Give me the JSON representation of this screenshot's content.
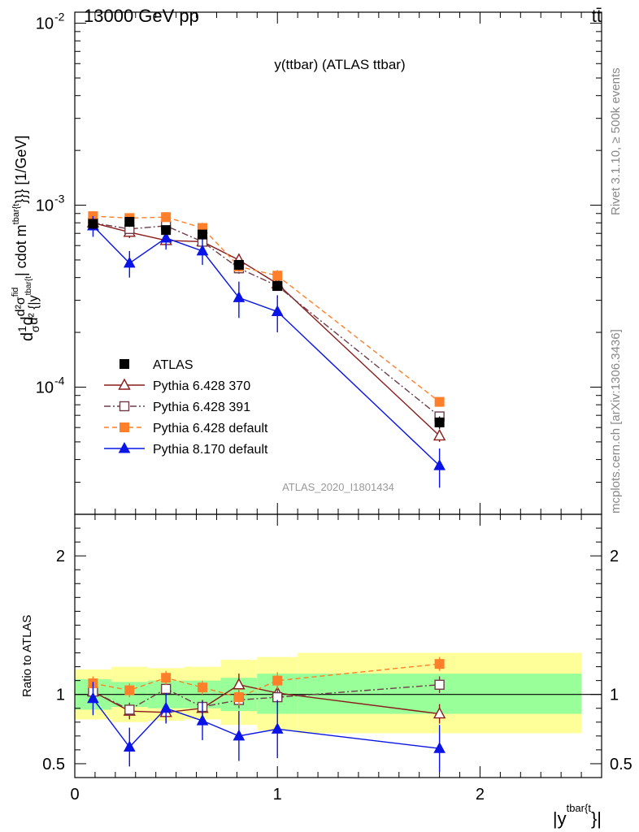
{
  "header": {
    "left": "13000 GeV pp",
    "right": "tt̄"
  },
  "title": "y(ttbar) (ATLAS ttbar)",
  "watermark": "ATLAS_2020_I1801434",
  "side_labels": {
    "rivet": "Rivet 3.1.10, ≥ 500k events",
    "mcplots": "mcplots.cern.ch [arXiv:1306.3436]"
  },
  "axis_labels": {
    "ylabel_main": "d1/σ d²σ^fid / d²{|y^tbar{t}| cdot m^tbar{t}}} [1/GeV]",
    "ylabel_main_parts": {
      "frac": "1",
      "sigma": "σ",
      "d": "d",
      "num": "d²σ",
      "fid": "fid",
      "den": "d² {|y",
      "dsup": "tbar{t",
      "cdot": "| cdot m",
      "msup": "tbar{t",
      "tail": "}}} [1/GeV]"
    },
    "ylabel_ratio": "Ratio to ATLAS",
    "xlabel_base": "|y",
    "xlabel_sup": "tbar{t",
    "xlabel_tail": "}|"
  },
  "chart_data": {
    "type": "scatter",
    "title": "y(ttbar) (ATLAS ttbar)",
    "x_axis": {
      "min": 0,
      "max": 2.6,
      "ticks": [
        0,
        1,
        2
      ],
      "tick_labels": [
        "0",
        "1",
        "2"
      ]
    },
    "main_y_axis": {
      "scale": "log",
      "min": 2e-05,
      "max": 0.0115,
      "major_ticks": [
        0.0001,
        0.001,
        0.01
      ],
      "tick_labels": [
        "10",
        "10",
        "10"
      ],
      "tick_exponents": [
        "-4",
        "-3",
        "-2"
      ]
    },
    "ratio_y_axis": {
      "min": 0.4,
      "max": 2.3,
      "ticks": [
        0.5,
        1,
        2
      ],
      "tick_labels": [
        "0.5",
        "1",
        "2"
      ]
    },
    "x": [
      0.09,
      0.27,
      0.45,
      0.63,
      0.81,
      1.0,
      1.8
    ],
    "bin_edges": [
      0,
      0.18,
      0.36,
      0.54,
      0.72,
      0.9,
      1.1,
      2.5
    ],
    "band_inner": [
      [
        0.89,
        1.11
      ],
      [
        0.91,
        1.09
      ],
      [
        0.9,
        1.1
      ],
      [
        0.9,
        1.1
      ],
      [
        0.88,
        1.12
      ],
      [
        0.86,
        1.15
      ],
      [
        0.86,
        1.15
      ]
    ],
    "band_outer": [
      [
        0.82,
        1.18
      ],
      [
        0.8,
        1.2
      ],
      [
        0.81,
        1.19
      ],
      [
        0.82,
        1.2
      ],
      [
        0.78,
        1.25
      ],
      [
        0.74,
        1.27
      ],
      [
        0.72,
        1.3
      ]
    ],
    "legend_position": "bottom-left",
    "series": [
      {
        "name": "ATLAS",
        "color": "#000000",
        "marker": "square",
        "dash": "none",
        "values": [
          0.00079,
          0.00081,
          0.00073,
          0.00069,
          0.00047,
          0.00036,
          6.4e-05
        ],
        "errors": [
          5e-05,
          5e-05,
          4e-05,
          4e-05,
          3e-05,
          2e-05,
          5e-06
        ],
        "ratio": [
          1,
          1,
          1,
          1,
          1,
          1,
          1
        ],
        "ratio_err": [
          0,
          0,
          0,
          0,
          0,
          0,
          0
        ]
      },
      {
        "name": "Pythia 6.428 370",
        "color": "#8b1a1a",
        "marker": "triangle-open",
        "dash": "none",
        "values": [
          0.0008,
          0.00071,
          0.00064,
          0.00063,
          0.0005,
          0.00037,
          5.4e-05
        ],
        "errors": [
          5e-05,
          5e-05,
          5e-05,
          4e-05,
          4e-05,
          3e-05,
          4e-06
        ],
        "ratio": [
          1.02,
          0.88,
          0.87,
          0.9,
          1.07,
          1.01,
          0.86
        ],
        "ratio_err": [
          0.06,
          0.06,
          0.07,
          0.06,
          0.08,
          0.08,
          0.07
        ]
      },
      {
        "name": "Pythia 6.428 391",
        "color": "#6e3d48",
        "marker": "square-open",
        "dash": "8,3,2,3",
        "values": [
          0.0008,
          0.00074,
          0.00077,
          0.00063,
          0.00045,
          0.00036,
          6.9e-05
        ],
        "errors": [
          4e-05,
          4e-05,
          4e-05,
          4e-05,
          3e-05,
          2e-05,
          4e-06
        ],
        "ratio": [
          1.02,
          0.89,
          1.04,
          0.91,
          0.96,
          0.98,
          1.07
        ],
        "ratio_err": [
          0.05,
          0.05,
          0.05,
          0.05,
          0.06,
          0.06,
          0.06
        ]
      },
      {
        "name": "Pythia 6.428 default",
        "color": "#ff7f2a",
        "marker": "square",
        "dash": "6,4",
        "values": [
          0.00087,
          0.00085,
          0.00086,
          0.00075,
          0.00046,
          0.00041,
          8.3e-05
        ],
        "errors": [
          5e-05,
          5e-05,
          5e-05,
          5e-05,
          3e-05,
          3e-05,
          5e-06
        ],
        "ratio": [
          1.08,
          1.03,
          1.12,
          1.05,
          0.98,
          1.1,
          1.22
        ],
        "ratio_err": [
          0.05,
          0.05,
          0.05,
          0.05,
          0.06,
          0.06,
          0.05
        ]
      },
      {
        "name": "Pythia 8.170 default",
        "color": "#0a14e6",
        "marker": "triangle",
        "dash": "none",
        "values": [
          0.00077,
          0.00048,
          0.00066,
          0.00056,
          0.00031,
          0.00026,
          3.7e-05
        ],
        "errors": [
          0.0001,
          8e-05,
          9e-05,
          9e-05,
          7e-05,
          6e-05,
          9e-06
        ],
        "ratio": [
          0.97,
          0.62,
          0.9,
          0.81,
          0.7,
          0.75,
          0.61
        ],
        "ratio_err": [
          0.12,
          0.14,
          0.11,
          0.14,
          0.18,
          0.21,
          0.17
        ]
      }
    ]
  }
}
